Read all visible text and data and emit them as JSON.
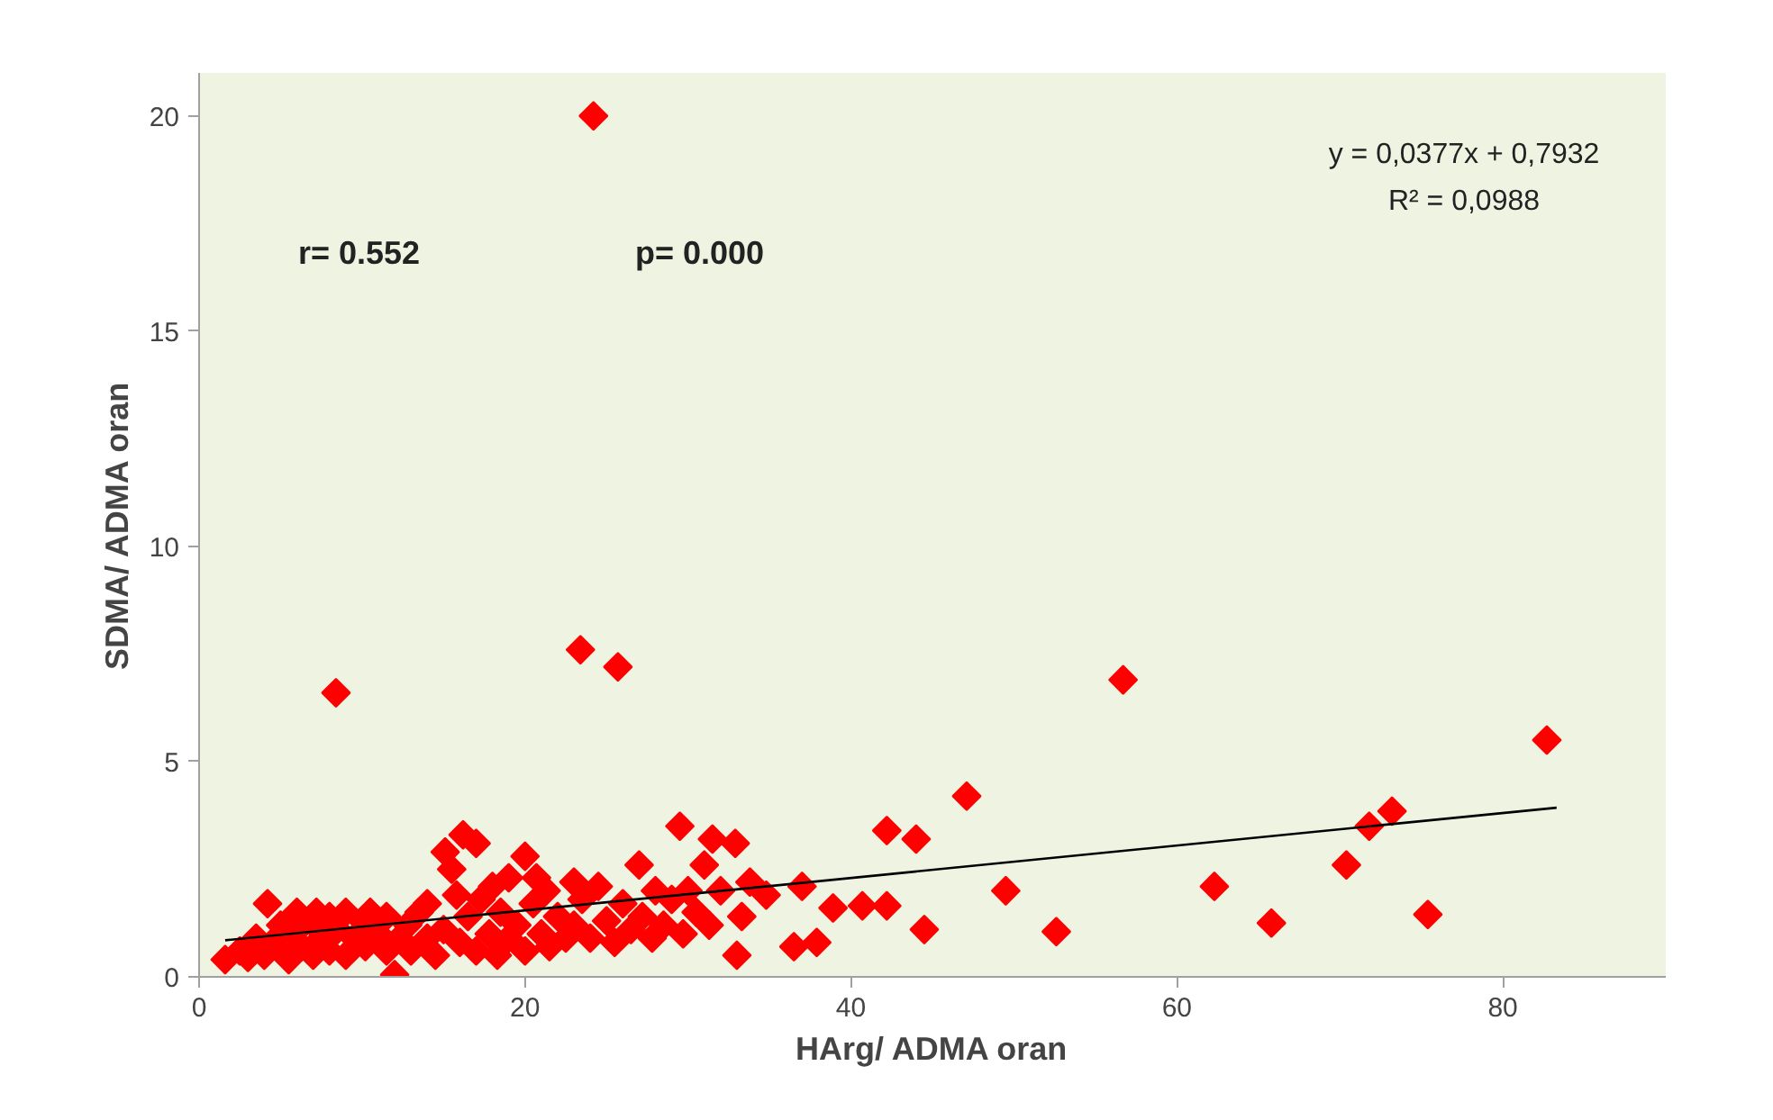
{
  "chart_data": {
    "type": "scatter",
    "xlabel": "HArg/ ADMA oran",
    "ylabel": "SDMA/ ADMA oran",
    "xlim": [
      0,
      90
    ],
    "ylim": [
      0,
      21
    ],
    "xticks": [
      0,
      20,
      40,
      60,
      80
    ],
    "yticks": [
      0,
      5,
      10,
      15,
      20
    ],
    "grid": false,
    "annotations": [
      "r= 0.552",
      "p= 0.000",
      "y = 0,0377x + 0,7932",
      "R² = 0,0988"
    ],
    "series": [
      {
        "marker": "diamond",
        "color": "#ff0000",
        "x": [
          1.6,
          2.5,
          3,
          3.5,
          4,
          4.2,
          4.5,
          5,
          5,
          5.5,
          5.8,
          6,
          6.3,
          6.8,
          7,
          7.2,
          7.5,
          8,
          8,
          8.5,
          9,
          9,
          9.5,
          10,
          10.2,
          10.5,
          11,
          11.5,
          11.5,
          12,
          12.3,
          12.8,
          13,
          13.5,
          14,
          14,
          14.5,
          15,
          15.1,
          15.5,
          15.8,
          16,
          16.2,
          16.5,
          17,
          17,
          17.3,
          17.8,
          18,
          18.3,
          18.5,
          19,
          19,
          19.5,
          20,
          20,
          20.5,
          20.7,
          21,
          21.3,
          21.5,
          22,
          22.5,
          23,
          23,
          23.5,
          24,
          24.5,
          25,
          25.5,
          26,
          26.5,
          27,
          27.2,
          27.8,
          28,
          28.5,
          29,
          29.5,
          29.7,
          30,
          30.5,
          31,
          31.3,
          31.5,
          32,
          32.9,
          33,
          33.3,
          33.8,
          34.8,
          36.5,
          37,
          37.9,
          38.9,
          40.7,
          42.2,
          42.2,
          44,
          44.5,
          47.1,
          49.5,
          52.6,
          56.7,
          62.3,
          65.8,
          70.4,
          71.8,
          73.2,
          75.4,
          82.7,
          24.2,
          8.4,
          23.4,
          25.7
        ],
        "values": [
          0.4,
          0.6,
          0.45,
          0.9,
          0.5,
          1.7,
          0.8,
          0.6,
          1.2,
          0.4,
          1.0,
          1.5,
          0.7,
          1.3,
          0.5,
          1.5,
          0.9,
          0.6,
          1.4,
          1.1,
          0.5,
          1.5,
          0.9,
          1.3,
          0.7,
          1.5,
          1.0,
          0.6,
          1.4,
          0.05,
          0.9,
          1.2,
          0.6,
          1.5,
          0.9,
          1.7,
          0.5,
          1.1,
          2.9,
          2.5,
          1.9,
          0.8,
          3.3,
          1.4,
          3.1,
          0.6,
          1.8,
          1.0,
          2.1,
          0.5,
          1.5,
          0.9,
          2.3,
          1.2,
          2.8,
          0.6,
          1.7,
          2.3,
          1.0,
          2.0,
          0.7,
          1.4,
          0.9,
          2.2,
          1.2,
          1.8,
          0.9,
          2.1,
          1.3,
          0.8,
          1.7,
          1.1,
          2.6,
          1.4,
          0.9,
          2.0,
          1.2,
          1.8,
          3.5,
          1.0,
          2.0,
          1.5,
          2.6,
          1.2,
          3.2,
          2.0,
          3.1,
          0.5,
          1.4,
          2.2,
          1.9,
          0.7,
          2.1,
          0.8,
          1.6,
          1.65,
          3.4,
          1.65,
          3.2,
          1.1,
          4.2,
          2.0,
          1.05,
          6.9,
          2.1,
          1.25,
          2.6,
          3.5,
          3.85,
          1.45,
          5.5,
          20.0,
          6.6,
          7.6,
          7.2
        ]
      },
      {
        "type": "line",
        "color": "#000000",
        "x": [
          1.6,
          83.3
        ],
        "values": [
          0.85,
          3.93
        ]
      }
    ]
  }
}
